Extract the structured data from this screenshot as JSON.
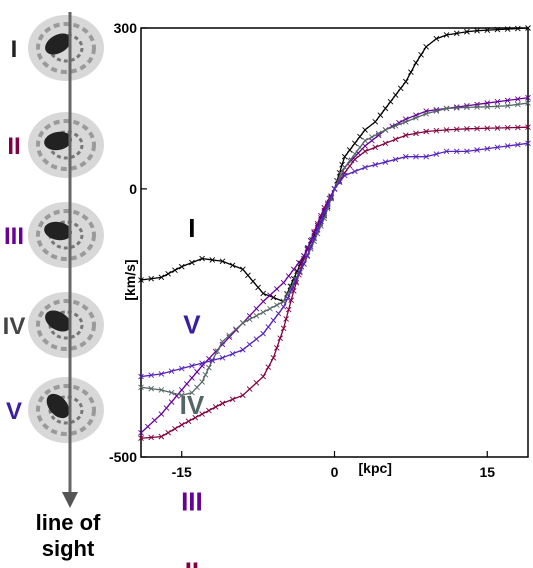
{
  "chart_data": {
    "type": "line",
    "xlabel": "[kpc]",
    "ylabel": "[km/s]",
    "xlim": [
      -19,
      19
    ],
    "ylim": [
      -500,
      300
    ],
    "x_ticks": [
      -15,
      0,
      15
    ],
    "y_ticks": [
      300,
      0,
      -500
    ],
    "grid": false,
    "series": [
      {
        "name": "I",
        "color": "#000000",
        "x": [
          -19,
          -17,
          -15,
          -13,
          -11,
          -9,
          -7,
          -5,
          -3,
          -1,
          0,
          1,
          2,
          3,
          4,
          5,
          6,
          7,
          8,
          9,
          10,
          11,
          12,
          13,
          14,
          16,
          19
        ],
        "y": [
          -170,
          -165,
          -145,
          -130,
          -135,
          -150,
          -195,
          -210,
          -125,
          -50,
          0,
          60,
          85,
          110,
          125,
          150,
          175,
          200,
          235,
          265,
          280,
          287,
          290,
          293,
          295,
          297,
          300
        ]
      },
      {
        "name": "II",
        "color": "#800040",
        "x": [
          -19,
          -17,
          -15,
          -13,
          -11,
          -9,
          -7,
          -6,
          -5,
          -4,
          -3,
          -2,
          -1,
          0,
          1,
          2,
          3,
          5,
          7,
          9,
          11,
          13,
          15,
          17,
          19
        ],
        "y": [
          -465,
          -462,
          -440,
          -420,
          -400,
          -385,
          -350,
          -315,
          -260,
          -190,
          -130,
          -80,
          -35,
          0,
          30,
          55,
          70,
          85,
          100,
          107,
          110,
          112,
          113,
          114,
          115
        ]
      },
      {
        "name": "III",
        "color": "#660099",
        "x": [
          -19,
          -17,
          -15,
          -13,
          -11,
          -9,
          -7,
          -5,
          -3,
          -1,
          0,
          1,
          3,
          5,
          7,
          9,
          11,
          13,
          15,
          17,
          19
        ],
        "y": [
          -455,
          -420,
          -375,
          -330,
          -290,
          -250,
          -210,
          -175,
          -125,
          -40,
          0,
          40,
          80,
          110,
          130,
          145,
          150,
          155,
          160,
          165,
          170
        ]
      },
      {
        "name": "IV",
        "color": "#556666",
        "x": [
          -19,
          -17,
          -16,
          -15,
          -14,
          -13,
          -12,
          -11,
          -9,
          -7,
          -5,
          -3,
          -1,
          0,
          1,
          3,
          5,
          7,
          9,
          11,
          13,
          15,
          17,
          19
        ],
        "y": [
          -370,
          -375,
          -380,
          -385,
          -380,
          -360,
          -320,
          -285,
          -250,
          -230,
          -210,
          -140,
          -55,
          0,
          40,
          90,
          110,
          125,
          140,
          150,
          152,
          153,
          155,
          160
        ]
      },
      {
        "name": "V",
        "color": "#5522bb",
        "x": [
          -19,
          -17,
          -15,
          -13,
          -11,
          -9,
          -7,
          -5,
          -3,
          -1,
          0,
          1,
          3,
          5,
          7,
          9,
          11,
          13,
          15,
          17,
          19
        ],
        "y": [
          -350,
          -345,
          -335,
          -325,
          -315,
          -300,
          -270,
          -220,
          -140,
          -45,
          0,
          25,
          40,
          50,
          60,
          60,
          70,
          70,
          75,
          80,
          85
        ]
      }
    ],
    "curve_labels": [
      {
        "text": "I",
        "color": "#000000",
        "x": -14,
        "y": -90
      },
      {
        "text": "V",
        "color": "#3b1f9e",
        "x": -14,
        "y": -270
      },
      {
        "text": "IV",
        "color": "#556666",
        "x": -14,
        "y": -420
      },
      {
        "text": "III",
        "color": "#660099",
        "x": -14,
        "y": -600
      },
      {
        "text": "II",
        "color": "#800040",
        "x": -14,
        "y": -730
      }
    ]
  },
  "panels": [
    {
      "label": "I",
      "color": "#222222"
    },
    {
      "label": "II",
      "color": "#800040"
    },
    {
      "label": "III",
      "color": "#660099"
    },
    {
      "label": "IV",
      "color": "#444444"
    },
    {
      "label": "V",
      "color": "#3b1f9e"
    }
  ],
  "line_of_sight": {
    "line1": "line of",
    "line2": "sight"
  }
}
